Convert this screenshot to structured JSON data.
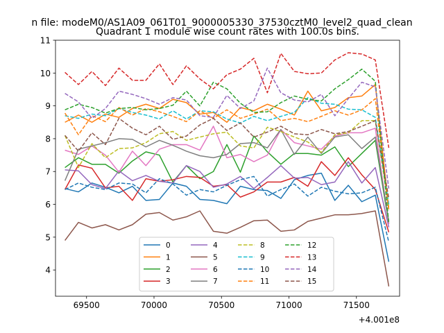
{
  "chart_data": {
    "type": "line",
    "suptitle": "n file: modeM0/AS1A09_061T01_9000005330_37530cztM0_level2_quad_clean",
    "title": "Quadrant 1 module wise count rates with 100.0s bins.",
    "xlabel": "",
    "ylabel": "",
    "x_offset_label": "+4.001e8",
    "xlim": [
      69270,
      71820
    ],
    "ylim": [
      3.2,
      11.0
    ],
    "xticks": [
      69500,
      70000,
      70500,
      71000,
      71500
    ],
    "xtick_labels": [
      "69500",
      "70000",
      "70500",
      "71000",
      "71500"
    ],
    "yticks": [
      4,
      5,
      6,
      7,
      8,
      9,
      10,
      11
    ],
    "ytick_labels": [
      "4",
      "5",
      "6",
      "7",
      "8",
      "9",
      "10",
      "11"
    ],
    "grid": false,
    "legend_position": "lower-center",
    "legend_columns": 4,
    "x": [
      69340,
      69440,
      69540,
      69640,
      69740,
      69840,
      69940,
      70040,
      70140,
      70240,
      70340,
      70440,
      70540,
      70640,
      70740,
      70840,
      70940,
      71040,
      71140,
      71240,
      71340,
      71440,
      71540,
      71640,
      71740
    ],
    "series": [
      {
        "name": "0",
        "color": "#1f77b4",
        "dash": "solid",
        "values": [
          6.48,
          6.38,
          6.65,
          6.52,
          6.35,
          6.55,
          6.12,
          6.15,
          6.65,
          6.55,
          6.15,
          6.12,
          6.02,
          6.55,
          6.45,
          6.42,
          6.18,
          6.75,
          6.88,
          6.95,
          6.12,
          6.58,
          6.08,
          6.28,
          4.25
        ]
      },
      {
        "name": "1",
        "color": "#ff7f0e",
        "dash": "solid",
        "values": [
          8.5,
          8.72,
          8.5,
          8.75,
          8.65,
          8.92,
          9.05,
          8.92,
          9.2,
          9.1,
          8.75,
          8.8,
          8.5,
          8.95,
          8.85,
          9.05,
          8.9,
          8.72,
          9.45,
          8.85,
          8.95,
          9.25,
          9.3,
          9.65,
          5.85
        ]
      },
      {
        "name": "2",
        "color": "#2ca02c",
        "dash": "solid",
        "values": [
          7.12,
          7.42,
          7.22,
          7.22,
          6.95,
          7.32,
          7.6,
          7.5,
          6.68,
          7.18,
          6.78,
          7.0,
          7.82,
          6.98,
          8.08,
          7.6,
          7.22,
          7.55,
          7.55,
          7.5,
          7.75,
          7.15,
          7.55,
          7.95,
          5.4
        ]
      },
      {
        "name": "3",
        "color": "#d62728",
        "dash": "solid",
        "values": [
          6.45,
          7.2,
          7.1,
          6.5,
          6.55,
          6.12,
          6.78,
          6.7,
          6.75,
          6.85,
          6.82,
          6.55,
          6.6,
          6.22,
          6.38,
          6.68,
          6.68,
          6.82,
          6.55,
          7.3,
          6.88,
          7.42,
          6.9,
          6.45,
          5.15
        ]
      },
      {
        "name": "4",
        "color": "#9467bd",
        "dash": "solid",
        "values": [
          7.05,
          7.02,
          6.6,
          6.48,
          7.02,
          6.72,
          6.88,
          6.7,
          6.65,
          7.18,
          7.0,
          6.52,
          6.62,
          6.85,
          6.48,
          6.82,
          7.18,
          6.8,
          6.82,
          6.6,
          6.68,
          7.3,
          6.65,
          7.12,
          5.3
        ]
      },
      {
        "name": "5",
        "color": "#8c564b",
        "dash": "solid",
        "values": [
          4.9,
          5.45,
          5.28,
          5.38,
          5.22,
          5.38,
          5.7,
          5.75,
          5.52,
          5.62,
          5.8,
          5.18,
          5.12,
          5.3,
          5.5,
          5.52,
          5.18,
          5.22,
          5.48,
          5.58,
          5.68,
          5.68,
          5.72,
          5.8,
          3.5
        ]
      },
      {
        "name": "6",
        "color": "#e377c2",
        "dash": "solid",
        "values": [
          7.65,
          7.52,
          7.78,
          7.5,
          6.98,
          7.62,
          7.18,
          7.68,
          7.82,
          7.82,
          7.65,
          8.38,
          7.42,
          7.52,
          7.3,
          7.5,
          8.28,
          7.88,
          7.78,
          7.68,
          8.08,
          8.18,
          8.18,
          8.32,
          5.4
        ]
      },
      {
        "name": "7",
        "color": "#7f7f7f",
        "dash": "solid",
        "values": [
          6.72,
          7.68,
          7.78,
          7.88,
          8.0,
          7.98,
          7.75,
          7.95,
          7.8,
          7.62,
          7.48,
          7.42,
          7.52,
          7.85,
          7.88,
          7.72,
          8.28,
          7.52,
          8.05,
          7.55,
          8.05,
          8.12,
          7.7,
          8.05,
          5.48
        ]
      },
      {
        "name": "8",
        "color": "#bcbd22",
        "dash": "dashed",
        "values": [
          8.1,
          7.12,
          7.85,
          7.42,
          7.7,
          7.72,
          7.88,
          8.15,
          8.22,
          7.95,
          8.05,
          8.15,
          8.2,
          7.78,
          7.72,
          8.35,
          8.22,
          8.05,
          7.9,
          7.58,
          8.12,
          8.18,
          8.55,
          8.55,
          5.92
        ]
      },
      {
        "name": "9",
        "color": "#17becf",
        "dash": "dashed",
        "values": [
          8.7,
          8.62,
          8.75,
          8.7,
          8.92,
          8.8,
          8.72,
          8.6,
          8.85,
          8.6,
          8.85,
          8.82,
          8.6,
          8.48,
          8.68,
          8.55,
          8.68,
          8.8,
          9.25,
          9.08,
          9.05,
          8.9,
          8.88,
          8.65,
          6.0
        ]
      },
      {
        "name": "10",
        "color": "#1f77b4",
        "dash": "dashed",
        "values": [
          6.45,
          6.65,
          6.52,
          6.45,
          6.65,
          6.62,
          6.35,
          6.78,
          6.62,
          6.28,
          6.45,
          6.38,
          6.58,
          6.75,
          6.85,
          6.25,
          6.45,
          6.62,
          6.25,
          6.52,
          6.4,
          6.32,
          6.35,
          6.52,
          4.85
        ]
      },
      {
        "name": "11",
        "color": "#ff7f0e",
        "dash": "dashed",
        "values": [
          8.78,
          8.12,
          8.7,
          8.52,
          8.95,
          8.72,
          8.92,
          8.82,
          8.68,
          8.52,
          8.85,
          8.62,
          8.88,
          8.62,
          8.75,
          8.9,
          8.55,
          8.62,
          8.52,
          8.68,
          8.85,
          8.72,
          8.88,
          9.22,
          5.82
        ]
      },
      {
        "name": "12",
        "color": "#2ca02c",
        "dash": "dashed",
        "values": [
          8.88,
          9.05,
          8.95,
          8.78,
          8.92,
          8.95,
          8.88,
          8.92,
          9.02,
          9.45,
          9.0,
          9.72,
          9.52,
          9.08,
          8.8,
          8.82,
          9.1,
          9.3,
          9.2,
          9.15,
          9.52,
          9.8,
          10.12,
          9.75,
          5.42
        ]
      },
      {
        "name": "13",
        "color": "#d62728",
        "dash": "dashed",
        "values": [
          10.02,
          9.65,
          10.05,
          9.62,
          10.15,
          9.78,
          9.78,
          10.28,
          9.65,
          10.22,
          9.82,
          9.52,
          9.95,
          10.12,
          10.45,
          9.4,
          10.6,
          10.05,
          9.98,
          10.0,
          10.4,
          10.62,
          10.58,
          10.4,
          7.72
        ]
      },
      {
        "name": "14",
        "color": "#9467bd",
        "dash": "dashed",
        "values": [
          9.38,
          9.12,
          8.62,
          8.92,
          9.45,
          9.35,
          9.22,
          9.05,
          9.25,
          9.18,
          8.7,
          8.65,
          9.32,
          8.92,
          9.15,
          10.15,
          9.4,
          9.18,
          9.12,
          9.35,
          8.7,
          9.22,
          9.72,
          9.58,
          6.48
        ]
      },
      {
        "name": "15",
        "color": "#8c564b",
        "dash": "dashed",
        "values": [
          8.1,
          7.62,
          8.18,
          7.82,
          8.62,
          8.32,
          8.12,
          8.38,
          7.98,
          8.08,
          8.42,
          8.62,
          8.25,
          8.48,
          8.05,
          8.2,
          8.38,
          8.15,
          8.12,
          8.28,
          8.15,
          8.22,
          8.38,
          8.55,
          6.18
        ]
      }
    ]
  }
}
